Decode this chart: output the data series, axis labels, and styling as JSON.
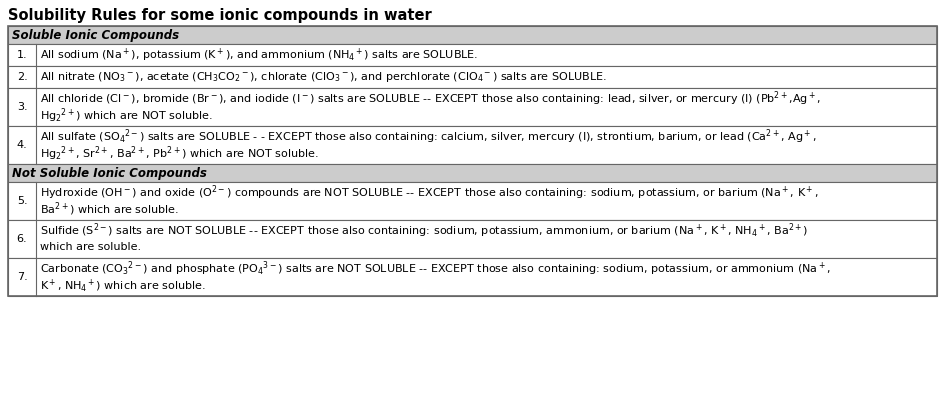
{
  "title": "Solubility Rules for some ionic compounds in water",
  "header1": "Soluble Ionic Compounds",
  "header2": "Not Soluble Ionic Compounds",
  "rows": [
    {
      "num": "1.",
      "line1": "All sodium (Na$^+$), potassium (K$^+$), and ammonium (NH$_4$$^+$) salts are SOLUBLE.",
      "line2": ""
    },
    {
      "num": "2.",
      "line1": "All nitrate (NO$_3$$^-$), acetate (CH$_3$CO$_2$$^-$), chlorate (ClO$_3$$^-$), and perchlorate (ClO$_4$$^-$) salts are SOLUBLE.",
      "line2": ""
    },
    {
      "num": "3.",
      "line1": "All chloride (Cl$^-$), bromide (Br$^-$), and iodide (I$^-$) salts are SOLUBLE -- EXCEPT those also containing: lead, silver, or mercury (I) (Pb$^{2+}$,Ag$^+$,",
      "line2": "Hg$_2$$^{2+}$) which are NOT soluble."
    },
    {
      "num": "4.",
      "line1": "All sulfate (SO$_4$$^{2-}$) salts are SOLUBLE - - EXCEPT those also containing: calcium, silver, mercury (I), strontium, barium, or lead (Ca$^{2+}$, Ag$^+$,",
      "line2": "Hg$_2$$^{2+}$, Sr$^{2+}$, Ba$^{2+}$, Pb$^{2+}$) which are NOT soluble."
    },
    {
      "num": "5.",
      "line1": "Hydroxide (OH$^-$) and oxide (O$^{2-}$) compounds are NOT SOLUBLE -- EXCEPT those also containing: sodium, potassium, or barium (Na$^+$, K$^+$,",
      "line2": "Ba$^{2+}$) which are soluble."
    },
    {
      "num": "6.",
      "line1": "Sulfide (S$^{2-}$) salts are NOT SOLUBLE -- EXCEPT those also containing: sodium, potassium, ammonium, or barium (Na$^+$, K$^+$, NH$_4$$^+$, Ba$^{2+}$)",
      "line2": "which are soluble."
    },
    {
      "num": "7.",
      "line1": "Carbonate (CO$_3$$^{2-}$) and phosphate (PO$_4$$^{3-}$) salts are NOT SOLUBLE -- EXCEPT those also containing: sodium, potassium, or ammonium (Na$^+$,",
      "line2": "K$^+$, NH$_4$$^+$) which are soluble."
    }
  ],
  "header_bg": "#cccccc",
  "white": "#ffffff",
  "border_color": "#666666",
  "title_fontsize": 10.5,
  "header_fontsize": 8.5,
  "text_fontsize": 8.0,
  "num_fontsize": 8.0
}
